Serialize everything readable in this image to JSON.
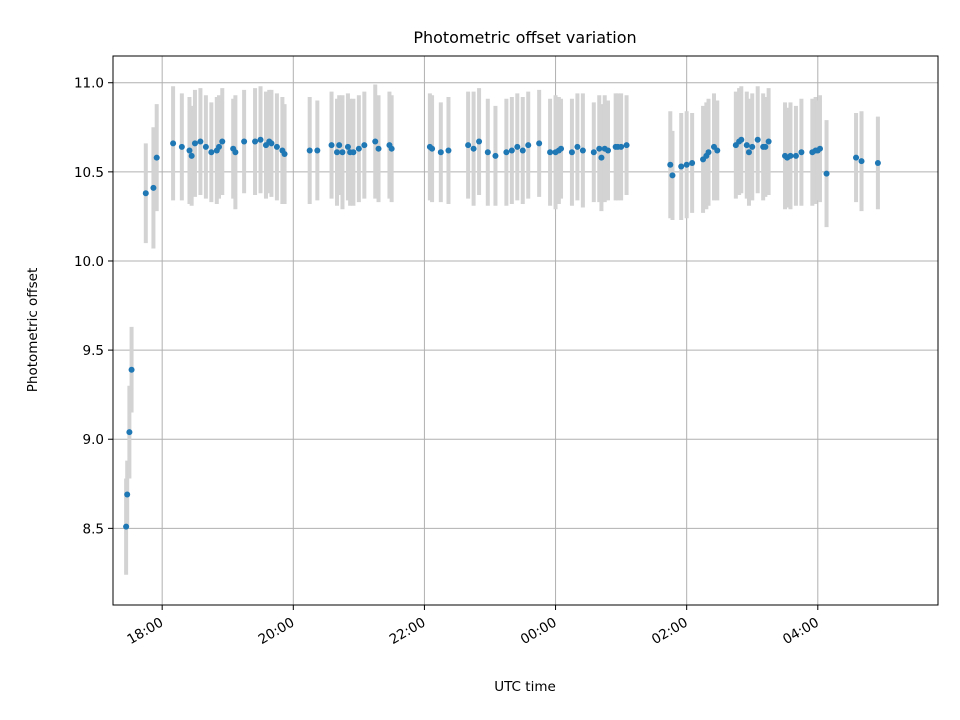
{
  "chart_data": {
    "type": "scatter",
    "title": "Photometric offset variation",
    "xlabel": "UTC time",
    "ylabel": "Photometric offset",
    "x_axis_type": "time",
    "x_ticks": [
      "18:00",
      "20:00",
      "22:00",
      "00:00",
      "02:00",
      "04:00"
    ],
    "y_ticks": [
      "8.5",
      "9.0",
      "9.5",
      "10.0",
      "10.5",
      "11.0"
    ],
    "y_tick_values": [
      8.5,
      9.0,
      9.5,
      10.0,
      10.5,
      11.0
    ],
    "xlim": [
      "17:15",
      "05:50"
    ],
    "ylim": [
      8.07,
      11.15
    ],
    "grid": true,
    "marker_color": "#1f77b4",
    "errorbar_color": "#d3d3d3",
    "series": [
      {
        "points": [
          {
            "x": "17:27",
            "y": 8.51,
            "err": 0.27
          },
          {
            "x": "17:28",
            "y": 8.69,
            "err": 0.19
          },
          {
            "x": "17:30",
            "y": 9.04,
            "err": 0.26
          },
          {
            "x": "17:32",
            "y": 9.39,
            "err": 0.24
          },
          {
            "x": "17:45",
            "y": 10.38,
            "err": 0.28
          },
          {
            "x": "17:52",
            "y": 10.41,
            "err": 0.34
          },
          {
            "x": "17:55",
            "y": 10.58,
            "err": 0.3
          },
          {
            "x": "18:10",
            "y": 10.66,
            "err": 0.32
          },
          {
            "x": "18:18",
            "y": 10.64,
            "err": 0.3
          },
          {
            "x": "18:25",
            "y": 10.62,
            "err": 0.3
          },
          {
            "x": "18:27",
            "y": 10.59,
            "err": 0.28
          },
          {
            "x": "18:30",
            "y": 10.66,
            "err": 0.3
          },
          {
            "x": "18:35",
            "y": 10.67,
            "err": 0.3
          },
          {
            "x": "18:40",
            "y": 10.64,
            "err": 0.29
          },
          {
            "x": "18:45",
            "y": 10.61,
            "err": 0.28
          },
          {
            "x": "18:50",
            "y": 10.62,
            "err": 0.3
          },
          {
            "x": "18:52",
            "y": 10.64,
            "err": 0.29
          },
          {
            "x": "18:55",
            "y": 10.67,
            "err": 0.3
          },
          {
            "x": "19:05",
            "y": 10.63,
            "err": 0.28
          },
          {
            "x": "19:07",
            "y": 10.61,
            "err": 0.32
          },
          {
            "x": "19:15",
            "y": 10.67,
            "err": 0.29
          },
          {
            "x": "19:25",
            "y": 10.67,
            "err": 0.3
          },
          {
            "x": "19:30",
            "y": 10.68,
            "err": 0.3
          },
          {
            "x": "19:35",
            "y": 10.65,
            "err": 0.3
          },
          {
            "x": "19:38",
            "y": 10.67,
            "err": 0.29
          },
          {
            "x": "19:40",
            "y": 10.66,
            "err": 0.3
          },
          {
            "x": "19:45",
            "y": 10.64,
            "err": 0.3
          },
          {
            "x": "19:50",
            "y": 10.62,
            "err": 0.3
          },
          {
            "x": "19:52",
            "y": 10.6,
            "err": 0.28
          },
          {
            "x": "20:15",
            "y": 10.62,
            "err": 0.3
          },
          {
            "x": "20:22",
            "y": 10.62,
            "err": 0.28
          },
          {
            "x": "20:35",
            "y": 10.65,
            "err": 0.3
          },
          {
            "x": "20:40",
            "y": 10.61,
            "err": 0.3
          },
          {
            "x": "20:42",
            "y": 10.65,
            "err": 0.28
          },
          {
            "x": "20:45",
            "y": 10.61,
            "err": 0.32
          },
          {
            "x": "20:50",
            "y": 10.64,
            "err": 0.3
          },
          {
            "x": "20:52",
            "y": 10.61,
            "err": 0.3
          },
          {
            "x": "20:55",
            "y": 10.61,
            "err": 0.3
          },
          {
            "x": "21:00",
            "y": 10.63,
            "err": 0.3
          },
          {
            "x": "21:05",
            "y": 10.65,
            "err": 0.3
          },
          {
            "x": "21:15",
            "y": 10.67,
            "err": 0.32
          },
          {
            "x": "21:18",
            "y": 10.63,
            "err": 0.3
          },
          {
            "x": "21:28",
            "y": 10.65,
            "err": 0.3
          },
          {
            "x": "21:30",
            "y": 10.63,
            "err": 0.3
          },
          {
            "x": "22:05",
            "y": 10.64,
            "err": 0.3
          },
          {
            "x": "22:07",
            "y": 10.63,
            "err": 0.3
          },
          {
            "x": "22:15",
            "y": 10.61,
            "err": 0.28
          },
          {
            "x": "22:22",
            "y": 10.62,
            "err": 0.3
          },
          {
            "x": "22:40",
            "y": 10.65,
            "err": 0.3
          },
          {
            "x": "22:45",
            "y": 10.63,
            "err": 0.32
          },
          {
            "x": "22:50",
            "y": 10.67,
            "err": 0.3
          },
          {
            "x": "22:58",
            "y": 10.61,
            "err": 0.3
          },
          {
            "x": "23:05",
            "y": 10.59,
            "err": 0.28
          },
          {
            "x": "23:15",
            "y": 10.61,
            "err": 0.3
          },
          {
            "x": "23:20",
            "y": 10.62,
            "err": 0.3
          },
          {
            "x": "23:25",
            "y": 10.64,
            "err": 0.3
          },
          {
            "x": "23:30",
            "y": 10.62,
            "err": 0.3
          },
          {
            "x": "23:35",
            "y": 10.65,
            "err": 0.3
          },
          {
            "x": "23:45",
            "y": 10.66,
            "err": 0.3
          },
          {
            "x": "23:55",
            "y": 10.61,
            "err": 0.3
          },
          {
            "x": "00:00",
            "y": 10.61,
            "err": 0.32
          },
          {
            "x": "00:03",
            "y": 10.62,
            "err": 0.3
          },
          {
            "x": "00:05",
            "y": 10.63,
            "err": 0.28
          },
          {
            "x": "00:15",
            "y": 10.61,
            "err": 0.3
          },
          {
            "x": "00:20",
            "y": 10.64,
            "err": 0.3
          },
          {
            "x": "00:25",
            "y": 10.62,
            "err": 0.32
          },
          {
            "x": "00:35",
            "y": 10.61,
            "err": 0.28
          },
          {
            "x": "00:40",
            "y": 10.63,
            "err": 0.3
          },
          {
            "x": "00:42",
            "y": 10.58,
            "err": 0.3
          },
          {
            "x": "00:45",
            "y": 10.63,
            "err": 0.3
          },
          {
            "x": "00:48",
            "y": 10.62,
            "err": 0.28
          },
          {
            "x": "00:55",
            "y": 10.64,
            "err": 0.3
          },
          {
            "x": "00:57",
            "y": 10.64,
            "err": 0.3
          },
          {
            "x": "01:00",
            "y": 10.64,
            "err": 0.3
          },
          {
            "x": "01:05",
            "y": 10.65,
            "err": 0.28
          },
          {
            "x": "01:45",
            "y": 10.54,
            "err": 0.3
          },
          {
            "x": "01:47",
            "y": 10.48,
            "err": 0.25
          },
          {
            "x": "01:55",
            "y": 10.53,
            "err": 0.3
          },
          {
            "x": "02:00",
            "y": 10.54,
            "err": 0.3
          },
          {
            "x": "02:05",
            "y": 10.55,
            "err": 0.28
          },
          {
            "x": "02:15",
            "y": 10.57,
            "err": 0.3
          },
          {
            "x": "02:18",
            "y": 10.59,
            "err": 0.3
          },
          {
            "x": "02:20",
            "y": 10.61,
            "err": 0.3
          },
          {
            "x": "02:25",
            "y": 10.64,
            "err": 0.3
          },
          {
            "x": "02:28",
            "y": 10.62,
            "err": 0.28
          },
          {
            "x": "02:45",
            "y": 10.65,
            "err": 0.3
          },
          {
            "x": "02:48",
            "y": 10.67,
            "err": 0.3
          },
          {
            "x": "02:50",
            "y": 10.68,
            "err": 0.3
          },
          {
            "x": "02:55",
            "y": 10.65,
            "err": 0.3
          },
          {
            "x": "02:57",
            "y": 10.61,
            "err": 0.3
          },
          {
            "x": "03:00",
            "y": 10.64,
            "err": 0.3
          },
          {
            "x": "03:05",
            "y": 10.68,
            "err": 0.3
          },
          {
            "x": "03:10",
            "y": 10.64,
            "err": 0.3
          },
          {
            "x": "03:12",
            "y": 10.64,
            "err": 0.28
          },
          {
            "x": "03:15",
            "y": 10.67,
            "err": 0.3
          },
          {
            "x": "03:30",
            "y": 10.59,
            "err": 0.3
          },
          {
            "x": "03:32",
            "y": 10.58,
            "err": 0.28
          },
          {
            "x": "03:35",
            "y": 10.59,
            "err": 0.3
          },
          {
            "x": "03:40",
            "y": 10.59,
            "err": 0.28
          },
          {
            "x": "03:45",
            "y": 10.61,
            "err": 0.3
          },
          {
            "x": "03:55",
            "y": 10.61,
            "err": 0.3
          },
          {
            "x": "03:58",
            "y": 10.62,
            "err": 0.3
          },
          {
            "x": "04:00",
            "y": 10.62,
            "err": 0.28
          },
          {
            "x": "04:02",
            "y": 10.63,
            "err": 0.3
          },
          {
            "x": "04:08",
            "y": 10.49,
            "err": 0.3
          },
          {
            "x": "04:35",
            "y": 10.58,
            "err": 0.25
          },
          {
            "x": "04:40",
            "y": 10.56,
            "err": 0.28
          },
          {
            "x": "04:55",
            "y": 10.55,
            "err": 0.26
          }
        ]
      }
    ]
  }
}
